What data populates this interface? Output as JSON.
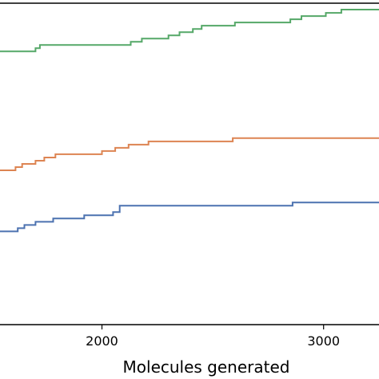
{
  "chart_data": {
    "type": "line",
    "xlabel": "Molecules generated",
    "ylabel": "",
    "title": "",
    "grid": false,
    "xlim": [
      1540,
      3250
    ],
    "ylim": [
      0,
      1
    ],
    "x_ticks": [
      2000,
      3000
    ],
    "x_tick_labels": [
      "2000",
      "3000"
    ],
    "series": [
      {
        "color": "#55a868",
        "x": [
          1540,
          1680,
          1700,
          1720,
          1770,
          2100,
          2130,
          2180,
          2240,
          2300,
          2350,
          2370,
          2410,
          2450,
          2560,
          2600,
          2680,
          2800,
          2850,
          2880,
          2900,
          2920,
          2990,
          3010,
          3040,
          3080,
          3100,
          3250
        ],
        "y": [
          0.85,
          0.85,
          0.86,
          0.87,
          0.87,
          0.87,
          0.88,
          0.89,
          0.89,
          0.9,
          0.91,
          0.91,
          0.92,
          0.93,
          0.93,
          0.94,
          0.94,
          0.94,
          0.95,
          0.95,
          0.96,
          0.96,
          0.96,
          0.97,
          0.97,
          0.98,
          0.98,
          0.98
        ]
      },
      {
        "color": "#dd8452",
        "x": [
          1540,
          1570,
          1610,
          1640,
          1660,
          1700,
          1740,
          1790,
          1860,
          2000,
          2060,
          2120,
          2210,
          2340,
          2590,
          3250
        ],
        "y": [
          0.48,
          0.48,
          0.49,
          0.5,
          0.5,
          0.51,
          0.52,
          0.53,
          0.53,
          0.54,
          0.55,
          0.56,
          0.57,
          0.57,
          0.58,
          0.58
        ]
      },
      {
        "color": "#4c72b0",
        "x": [
          1540,
          1580,
          1620,
          1650,
          1700,
          1780,
          1860,
          1920,
          2050,
          2080,
          2820,
          2860,
          2920,
          3250
        ],
        "y": [
          0.29,
          0.29,
          0.3,
          0.31,
          0.32,
          0.33,
          0.33,
          0.34,
          0.35,
          0.37,
          0.37,
          0.38,
          0.38,
          0.38
        ]
      }
    ]
  }
}
